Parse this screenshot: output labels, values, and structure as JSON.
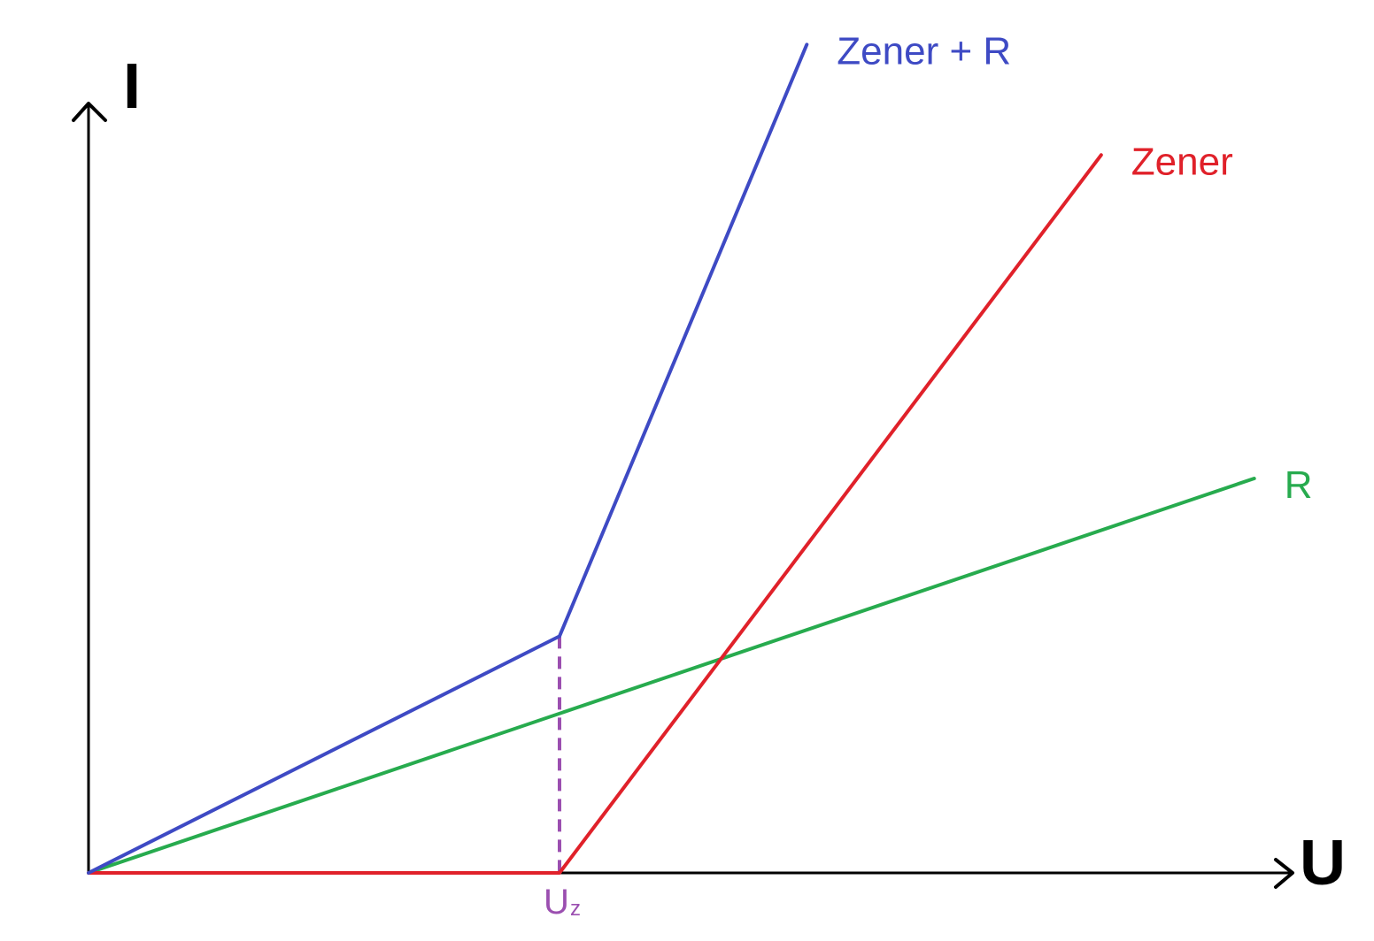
{
  "chart_data": {
    "type": "line",
    "title": "",
    "xlabel": "U",
    "ylabel": "I",
    "grid": false,
    "legend": "labels at line ends",
    "xlim": [
      0,
      10
    ],
    "ylim": [
      0,
      10
    ],
    "series": [
      {
        "name": "Zener + R",
        "color": "#3e4ac4",
        "x": [
          0,
          4,
          6.1
        ],
        "y": [
          0,
          3.0,
          10.5
        ]
      },
      {
        "name": "Zener",
        "color": "#e0212a",
        "x": [
          0,
          4,
          8.6
        ],
        "y": [
          0,
          0,
          9.1
        ]
      },
      {
        "name": "R",
        "color": "#27ab4e",
        "x": [
          0,
          9.9
        ],
        "y": [
          0,
          5.0
        ]
      }
    ],
    "markers": [
      {
        "label": "U",
        "subscript": "z",
        "x": 4,
        "color": "#9b4fb0"
      }
    ]
  }
}
